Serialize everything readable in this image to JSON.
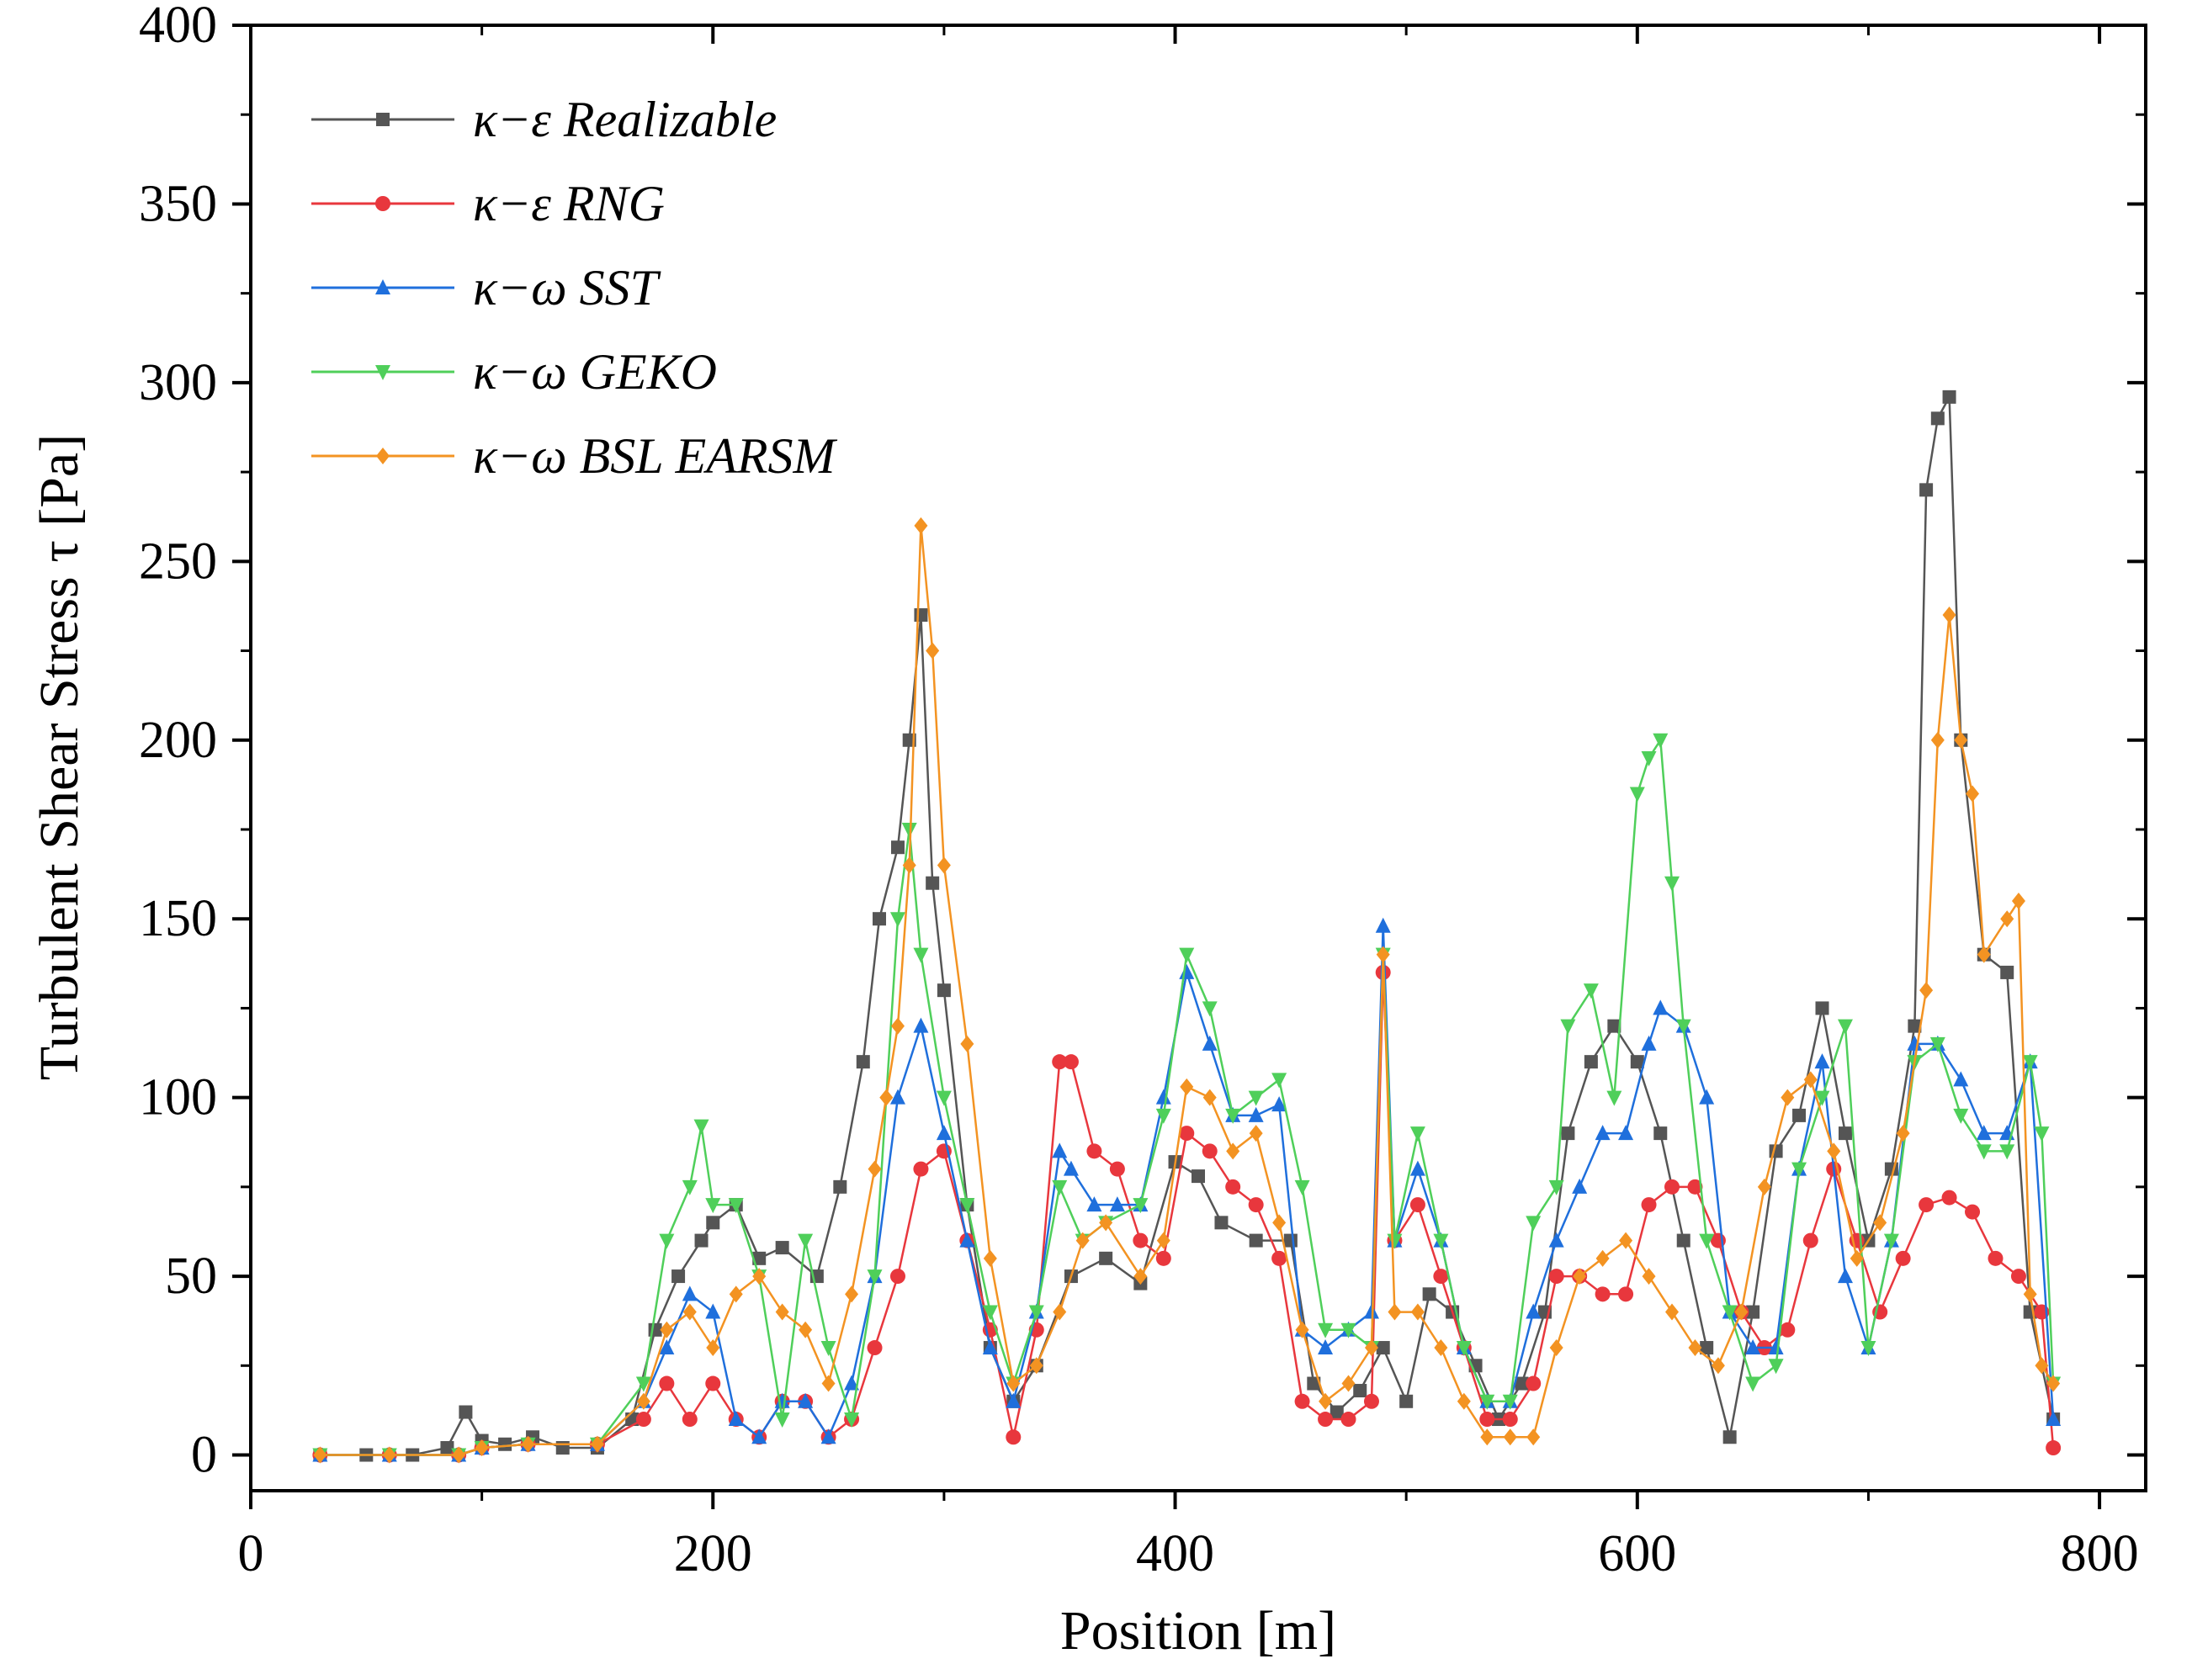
{
  "chart_data": {
    "type": "line",
    "title": "",
    "xlabel": "Position [m]",
    "ylabel": "Turbulent Shear Stress τ [Pa]",
    "xlim": [
      0,
      820
    ],
    "ylim": [
      -10,
      400
    ],
    "xticks": [
      0,
      200,
      400,
      600,
      800
    ],
    "yticks": [
      0,
      50,
      100,
      150,
      200,
      250,
      300,
      350,
      400
    ],
    "legend_position": "top-left",
    "series": [
      {
        "name": "κ−ε  Realizable",
        "color": "#555555",
        "marker": "square",
        "x": [
          30,
          50,
          70,
          85,
          93,
          100,
          110,
          122,
          135,
          150,
          165,
          175,
          185,
          195,
          200,
          210,
          220,
          230,
          245,
          255,
          265,
          272,
          280,
          285,
          290,
          295,
          300,
          310,
          320,
          330,
          340,
          355,
          370,
          385,
          400,
          410,
          420,
          435,
          450,
          460,
          470,
          480,
          490,
          500,
          510,
          520,
          530,
          540,
          550,
          560,
          570,
          580,
          590,
          600,
          610,
          620,
          630,
          640,
          650,
          660,
          670,
          680,
          690,
          700,
          710,
          720,
          725,
          730,
          735,
          740,
          750,
          760,
          770,
          780
        ],
        "y": [
          0,
          0,
          0,
          2,
          12,
          4,
          3,
          5,
          2,
          2,
          10,
          35,
          50,
          60,
          65,
          70,
          55,
          58,
          50,
          75,
          110,
          150,
          170,
          200,
          235,
          160,
          130,
          70,
          30,
          15,
          25,
          50,
          55,
          48,
          82,
          78,
          65,
          60,
          60,
          20,
          12,
          18,
          30,
          15,
          45,
          40,
          25,
          10,
          20,
          40,
          90,
          110,
          120,
          110,
          90,
          60,
          30,
          5,
          40,
          85,
          95,
          125,
          90,
          60,
          80,
          120,
          270,
          290,
          296,
          200,
          140,
          135,
          40,
          10
        ]
      },
      {
        "name": "κ−ε  RNG",
        "color": "#e8373d",
        "marker": "circle",
        "x": [
          30,
          60,
          90,
          100,
          120,
          150,
          170,
          180,
          190,
          200,
          210,
          220,
          230,
          240,
          250,
          260,
          270,
          280,
          290,
          300,
          310,
          320,
          330,
          340,
          350,
          355,
          365,
          375,
          385,
          395,
          405,
          415,
          425,
          435,
          445,
          455,
          465,
          475,
          485,
          490,
          495,
          505,
          515,
          525,
          535,
          545,
          555,
          565,
          575,
          585,
          595,
          605,
          615,
          625,
          635,
          645,
          655,
          665,
          675,
          685,
          695,
          705,
          715,
          725,
          735,
          745,
          755,
          765,
          775,
          780
        ],
        "y": [
          0,
          0,
          0,
          2,
          3,
          3,
          10,
          20,
          10,
          20,
          10,
          5,
          15,
          15,
          5,
          10,
          30,
          50,
          80,
          85,
          60,
          35,
          5,
          35,
          110,
          110,
          85,
          80,
          60,
          55,
          90,
          85,
          75,
          70,
          55,
          15,
          10,
          10,
          15,
          135,
          60,
          70,
          50,
          30,
          10,
          10,
          20,
          50,
          50,
          45,
          45,
          70,
          75,
          75,
          60,
          40,
          30,
          35,
          60,
          80,
          60,
          40,
          55,
          70,
          72,
          68,
          55,
          50,
          40,
          2
        ]
      },
      {
        "name": "κ−ω  SST",
        "color": "#1f6fdc",
        "marker": "triangle-up",
        "x": [
          30,
          60,
          90,
          100,
          120,
          150,
          170,
          180,
          190,
          200,
          210,
          220,
          230,
          240,
          250,
          260,
          270,
          280,
          290,
          300,
          310,
          320,
          330,
          340,
          350,
          355,
          365,
          375,
          385,
          395,
          405,
          415,
          425,
          435,
          445,
          455,
          465,
          475,
          485,
          490,
          495,
          505,
          515,
          525,
          535,
          545,
          555,
          565,
          575,
          585,
          595,
          605,
          610,
          620,
          630,
          640,
          650,
          660,
          670,
          680,
          690,
          700,
          710,
          720,
          730,
          740,
          750,
          760,
          770,
          780
        ],
        "y": [
          0,
          0,
          0,
          2,
          3,
          3,
          15,
          30,
          45,
          40,
          10,
          5,
          15,
          15,
          5,
          20,
          50,
          100,
          120,
          90,
          60,
          30,
          15,
          40,
          85,
          80,
          70,
          70,
          70,
          100,
          135,
          115,
          95,
          95,
          98,
          35,
          30,
          35,
          40,
          148,
          60,
          80,
          60,
          30,
          15,
          15,
          40,
          60,
          75,
          90,
          90,
          115,
          125,
          120,
          100,
          40,
          30,
          30,
          80,
          110,
          50,
          30,
          60,
          115,
          115,
          105,
          90,
          90,
          110,
          10
        ]
      },
      {
        "name": "κ−ω  GEKO",
        "color": "#4fcf5a",
        "marker": "triangle-down",
        "x": [
          30,
          60,
          90,
          100,
          120,
          150,
          170,
          180,
          190,
          195,
          200,
          210,
          220,
          230,
          240,
          250,
          260,
          270,
          280,
          285,
          290,
          300,
          310,
          320,
          330,
          340,
          350,
          360,
          370,
          385,
          395,
          405,
          415,
          425,
          435,
          445,
          455,
          465,
          475,
          485,
          490,
          495,
          505,
          515,
          525,
          535,
          545,
          555,
          565,
          570,
          580,
          590,
          600,
          605,
          610,
          615,
          620,
          630,
          640,
          650,
          660,
          670,
          680,
          690,
          700,
          710,
          720,
          730,
          740,
          750,
          760,
          770,
          775,
          780
        ],
        "y": [
          0,
          0,
          0,
          2,
          3,
          3,
          20,
          60,
          75,
          92,
          70,
          70,
          50,
          10,
          60,
          30,
          10,
          50,
          150,
          175,
          140,
          100,
          70,
          40,
          20,
          40,
          75,
          60,
          65,
          70,
          95,
          140,
          125,
          95,
          100,
          105,
          75,
          35,
          35,
          30,
          140,
          60,
          90,
          60,
          30,
          15,
          15,
          65,
          75,
          120,
          130,
          100,
          185,
          195,
          200,
          160,
          120,
          60,
          40,
          20,
          25,
          80,
          100,
          120,
          30,
          60,
          110,
          115,
          95,
          85,
          85,
          110,
          90,
          20
        ]
      },
      {
        "name": "κ−ω  BSL EARSM",
        "color": "#f39322",
        "marker": "diamond",
        "x": [
          30,
          60,
          90,
          100,
          120,
          150,
          170,
          180,
          190,
          200,
          210,
          220,
          230,
          240,
          250,
          260,
          270,
          275,
          280,
          285,
          290,
          295,
          300,
          310,
          320,
          330,
          340,
          350,
          360,
          370,
          385,
          395,
          405,
          415,
          425,
          435,
          445,
          455,
          465,
          475,
          485,
          490,
          495,
          505,
          515,
          525,
          535,
          545,
          555,
          565,
          575,
          585,
          595,
          605,
          615,
          625,
          635,
          645,
          655,
          665,
          675,
          685,
          695,
          705,
          715,
          725,
          730,
          735,
          740,
          745,
          750,
          760,
          765,
          770,
          775,
          780
        ],
        "y": [
          0,
          0,
          0,
          2,
          3,
          3,
          15,
          35,
          40,
          30,
          45,
          50,
          40,
          35,
          20,
          45,
          80,
          100,
          120,
          165,
          260,
          225,
          165,
          115,
          55,
          20,
          25,
          40,
          60,
          65,
          50,
          60,
          103,
          100,
          85,
          90,
          65,
          35,
          15,
          20,
          30,
          140,
          40,
          40,
          30,
          15,
          5,
          5,
          5,
          30,
          50,
          55,
          60,
          50,
          40,
          30,
          25,
          40,
          75,
          100,
          105,
          85,
          55,
          65,
          90,
          130,
          200,
          235,
          200,
          185,
          140,
          150,
          155,
          45,
          25,
          20
        ]
      }
    ]
  }
}
